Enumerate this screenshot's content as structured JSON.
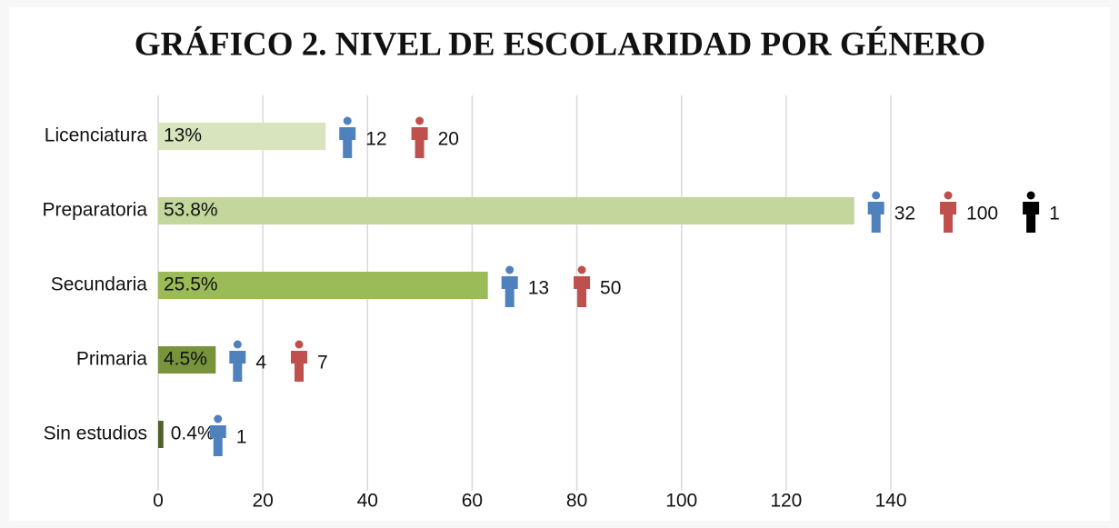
{
  "chart_data": {
    "type": "bar",
    "title": "GRÁFICO 2. NIVEL DE ESCOLARIDAD POR GÉNERO",
    "categories": [
      "Licenciatura",
      "Preparatoria",
      "Secundaria",
      "Primaria",
      "Sin estudios"
    ],
    "values": [
      32,
      133,
      63,
      11,
      1
    ],
    "percent_labels": [
      "13%",
      "53.8%",
      "25.5%",
      "4.5%",
      "0.4%"
    ],
    "colors": [
      "#d7e4bd",
      "#c3d69b",
      "#9bbb59",
      "#77933c",
      "#4f6228"
    ],
    "icon_counts": [
      {
        "color": "#4f81bd",
        "values": [
          12,
          32,
          13,
          4,
          1
        ]
      },
      {
        "color": "#c0504d",
        "values": [
          20,
          100,
          50,
          7,
          null
        ]
      },
      {
        "color": "#000000",
        "values": [
          null,
          1,
          null,
          null,
          null
        ]
      }
    ],
    "xlim": [
      0,
      140
    ],
    "xticks": [
      0,
      20,
      40,
      60,
      80,
      100,
      120,
      140
    ],
    "grid": true
  }
}
